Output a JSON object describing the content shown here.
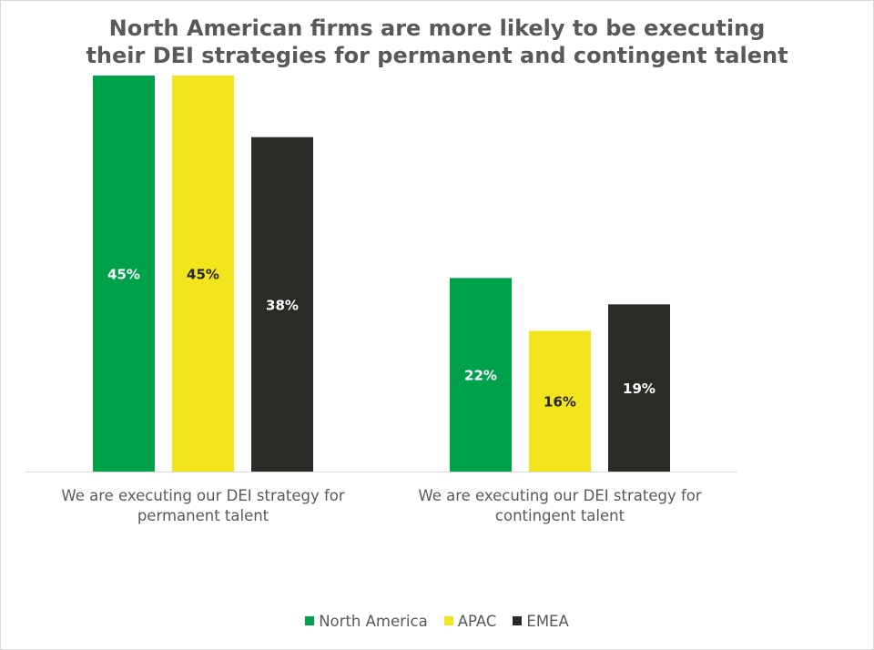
{
  "chart_data": {
    "type": "bar",
    "title_lines": [
      "North American firms are more likely to be executing",
      "their DEI strategies for permanent and contingent talent"
    ],
    "categories": [
      [
        "We are executing our DEI strategy for",
        "permanent talent"
      ],
      [
        "We are executing our DEI strategy for",
        "contingent talent"
      ]
    ],
    "series": [
      {
        "name": "North America",
        "color": "#00a14b",
        "label_color": "#ffffff",
        "values": [
          45,
          22
        ],
        "labels": [
          "45%",
          "22%"
        ]
      },
      {
        "name": "APAC",
        "color": "#f2e41d",
        "label_color": "#262626",
        "values": [
          45,
          16
        ],
        "labels": [
          "45%",
          "16%"
        ]
      },
      {
        "name": "EMEA",
        "color": "#2b2a26",
        "label_color": "#ffffff",
        "values": [
          38,
          19
        ],
        "labels": [
          "38%",
          "19%"
        ]
      }
    ],
    "ylim": [
      0,
      45
    ],
    "grid": false,
    "legend_position": "bottom",
    "axis_color": "#d9d9d9"
  }
}
